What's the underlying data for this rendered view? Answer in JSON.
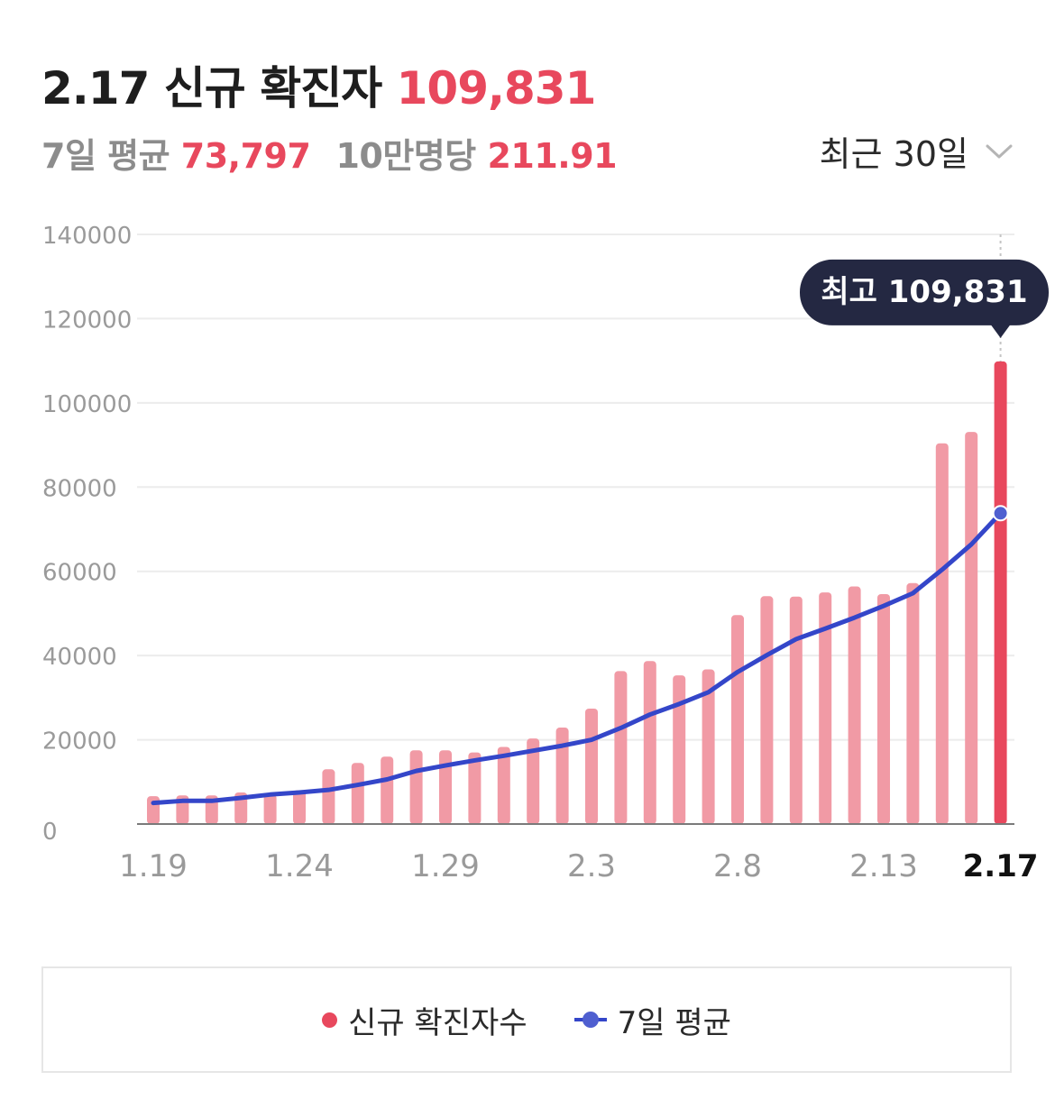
{
  "header": {
    "date": "2.17",
    "title_text": "신규 확진자",
    "new_cases": "109,831",
    "avg_label": "7일 평균",
    "avg_value": "73,797",
    "per100k_label": "10만명당",
    "per100k_value": "211.91"
  },
  "range_select": {
    "label": "최근 30일"
  },
  "tooltip": {
    "label": "최고 109,831"
  },
  "legend": {
    "bars": "신규 확진자수",
    "line": "7일 평균"
  },
  "colors": {
    "bar": "#f19aa5",
    "bar_highlight": "#e8485d",
    "line": "#3446c9",
    "point": "#4f5fd0",
    "tooltip_bg": "#242842"
  },
  "chart_data": {
    "type": "bar",
    "ylim": [
      0,
      140000
    ],
    "y_ticks": [
      "0",
      "20000",
      "40000",
      "60000",
      "80000",
      "100000",
      "120000",
      "140000"
    ],
    "x_tick_labels": [
      "1.19",
      "1.24",
      "1.29",
      "2.3",
      "2.8",
      "2.13",
      "2.17"
    ],
    "categories": [
      "1.19",
      "1.20",
      "1.21",
      "1.22",
      "1.23",
      "1.24",
      "1.25",
      "1.26",
      "1.27",
      "1.28",
      "1.29",
      "1.30",
      "1.31",
      "2.1",
      "2.2",
      "2.3",
      "2.4",
      "2.5",
      "2.6",
      "2.7",
      "2.8",
      "2.9",
      "2.10",
      "2.11",
      "2.12",
      "2.13",
      "2.14",
      "2.15",
      "2.16",
      "2.17"
    ],
    "series": [
      {
        "name": "신규 확진자수",
        "type": "bar",
        "values": [
          6600,
          6800,
          6800,
          7500,
          7000,
          8000,
          13000,
          14500,
          16000,
          17500,
          17500,
          17000,
          18300,
          20300,
          22900,
          27400,
          36300,
          38700,
          35300,
          36700,
          49600,
          54100,
          54000,
          55000,
          56400,
          54600,
          57200,
          90400,
          93100,
          109831
        ]
      },
      {
        "name": "7일 평균",
        "type": "line",
        "values": [
          5000,
          5500,
          5500,
          6200,
          7000,
          7500,
          8100,
          9300,
          10600,
          12600,
          13900,
          15100,
          16200,
          17400,
          18600,
          20000,
          22800,
          26000,
          28500,
          31300,
          36100,
          40100,
          43900,
          46400,
          49000,
          51800,
          54800,
          60400,
          66400,
          73797
        ]
      }
    ],
    "highlight_index": 29
  }
}
